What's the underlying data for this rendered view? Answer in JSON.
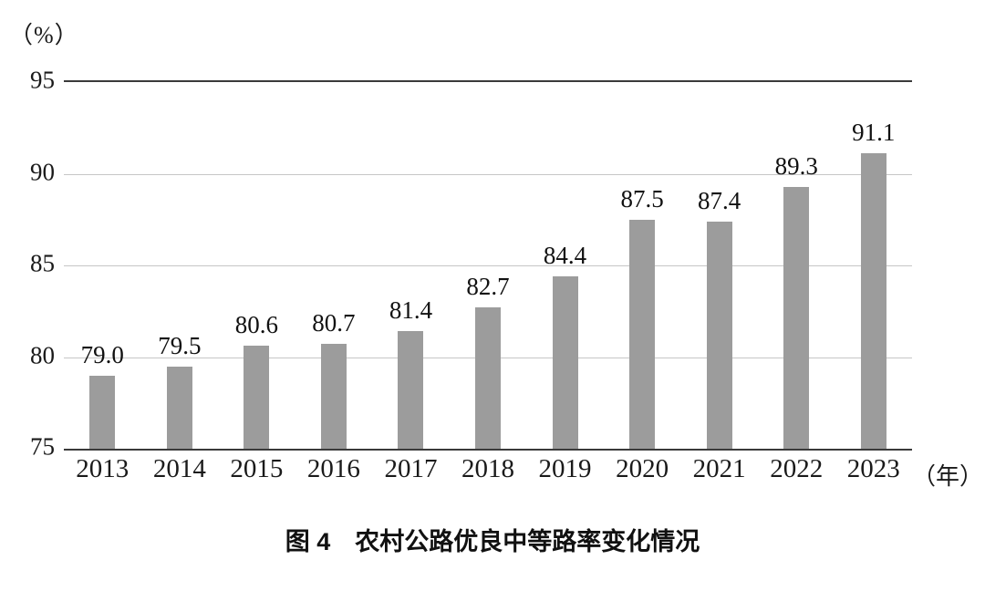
{
  "chart_data": {
    "type": "bar",
    "categories": [
      "2013",
      "2014",
      "2015",
      "2016",
      "2017",
      "2018",
      "2019",
      "2020",
      "2021",
      "2022",
      "2023"
    ],
    "values": [
      79.0,
      79.5,
      80.6,
      80.7,
      81.4,
      82.7,
      84.4,
      87.5,
      87.4,
      89.3,
      91.1
    ],
    "title": "图 4　农村公路优良中等路率变化情况",
    "xlabel": "（年）",
    "ylabel": "（%）",
    "ylim": [
      75,
      95
    ],
    "yticks": [
      95,
      90,
      85,
      80,
      75
    ],
    "bar_color": "#9c9c9c",
    "grid": true,
    "legend": "none"
  },
  "labels": {
    "y_unit": "（%）",
    "x_unit": "（年）"
  }
}
